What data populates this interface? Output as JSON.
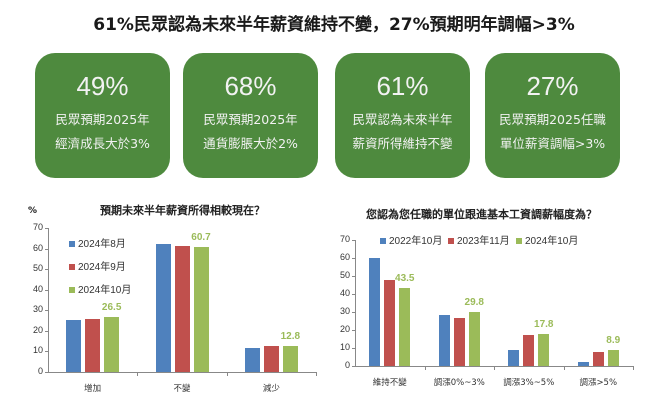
{
  "header": {
    "title": "61%民眾認為未來半年薪資維持不變，27%預期明年調幅>3%"
  },
  "colors": {
    "card_bg": "#4e8a3e",
    "blue": "#4f81bd",
    "red": "#c0504d",
    "green": "#9bbb59"
  },
  "cards": [
    {
      "value": "49%",
      "line1": "民眾預期2025年",
      "line2": "經濟成長大於3%"
    },
    {
      "value": "68%",
      "line1": "民眾預期2025年",
      "line2": "通貨膨脹大於2%"
    },
    {
      "value": "61%",
      "line1": "民眾認為未來半年",
      "line2": "薪資所得維持不變"
    },
    {
      "value": "27%",
      "line1": "民眾預期2025任職",
      "line2": "單位薪資調幅>3%"
    }
  ],
  "chart_data": [
    {
      "type": "bar",
      "title": "預期未來半年薪資所得相較現在？",
      "ylabel": "%",
      "xlabel": "",
      "ylim": [
        0,
        70
      ],
      "yticks": [
        "0",
        "10",
        "20",
        "30",
        "40",
        "50",
        "60",
        "70"
      ],
      "categories": [
        "增加",
        "不變",
        "減少"
      ],
      "series": [
        {
          "name": "2024年8月",
          "values": [
            25.5,
            62.2,
            11.9
          ]
        },
        {
          "name": "2024年9月",
          "values": [
            25.8,
            61.3,
            12.4
          ]
        },
        {
          "name": "2024年10月",
          "values": [
            26.5,
            60.7,
            12.8
          ]
        }
      ],
      "data_labels": [
        "26.5",
        "60.7",
        "12.8"
      ],
      "legend_position": "upper-left inside",
      "grid": false
    },
    {
      "type": "bar",
      "title": "您認為您任職的單位跟進基本工資調薪幅度為？",
      "ylabel": "",
      "xlabel": "",
      "ylim": [
        0,
        70
      ],
      "yticks": [
        "0",
        "10",
        "20",
        "30",
        "40",
        "50",
        "60",
        "70"
      ],
      "categories": [
        "維持不變",
        "調漲0%~3%",
        "調漲3%~5%",
        "調漲>5%"
      ],
      "series": [
        {
          "name": "2022年10月",
          "values": [
            60.0,
            28.3,
            9.0,
            2.5
          ]
        },
        {
          "name": "2023年11月",
          "values": [
            48.0,
            26.8,
            17.5,
            7.6
          ]
        },
        {
          "name": "2024年10月",
          "values": [
            43.5,
            29.8,
            17.8,
            8.9
          ]
        }
      ],
      "data_labels": [
        "43.5",
        "29.8",
        "17.8",
        "8.9"
      ],
      "legend_position": "top inside",
      "grid": false
    }
  ]
}
